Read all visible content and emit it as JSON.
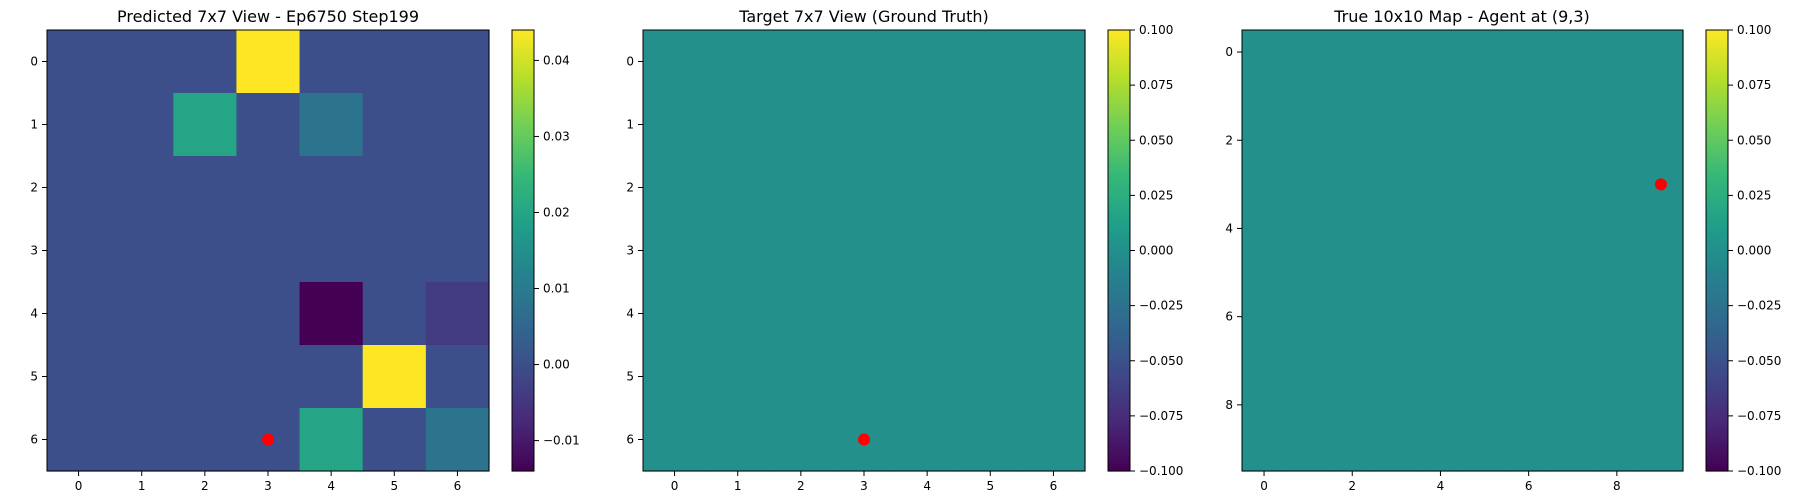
{
  "chart_data": [
    {
      "type": "heatmap",
      "title": "Predicted 7x7 View - Ep6750 Step199",
      "rows": 7,
      "cols": 7,
      "x_ticks": [
        "0",
        "1",
        "2",
        "3",
        "4",
        "5",
        "6"
      ],
      "y_ticks": [
        "0",
        "1",
        "2",
        "3",
        "4",
        "5",
        "6"
      ],
      "values": [
        [
          0.0,
          0.0,
          0.0,
          0.044,
          0.0,
          0.0,
          0.0
        ],
        [
          0.0,
          0.0,
          0.02,
          0.0,
          0.008,
          0.0,
          0.0
        ],
        [
          0.0,
          0.0,
          0.0,
          0.0,
          0.0,
          0.0,
          0.0
        ],
        [
          0.0,
          0.0,
          0.0,
          0.0,
          0.0,
          0.0,
          0.0
        ],
        [
          0.0,
          0.0,
          0.0,
          0.0,
          -0.014,
          0.0,
          -0.004
        ],
        [
          0.0,
          0.0,
          0.0,
          0.0,
          0.0,
          0.044,
          0.0
        ],
        [
          0.0,
          0.0,
          0.0,
          0.0,
          0.02,
          0.0,
          0.008
        ]
      ],
      "vmin": -0.014,
      "vmax": 0.044,
      "colorbar_ticks": [
        "−0.01",
        "0.00",
        "0.01",
        "0.02",
        "0.03",
        "0.04"
      ],
      "colorbar_tick_values": [
        -0.01,
        0.0,
        0.01,
        0.02,
        0.03,
        0.04
      ],
      "marker": {
        "x": 3,
        "y": 6,
        "color": "#ff0000"
      },
      "colormap": "viridis"
    },
    {
      "type": "heatmap",
      "title": "Target 7x7 View (Ground Truth)",
      "rows": 7,
      "cols": 7,
      "x_ticks": [
        "0",
        "1",
        "2",
        "3",
        "4",
        "5",
        "6"
      ],
      "y_ticks": [
        "0",
        "1",
        "2",
        "3",
        "4",
        "5",
        "6"
      ],
      "uniform_value": 0.0,
      "vmin": -0.1,
      "vmax": 0.1,
      "colorbar_ticks": [
        "−0.100",
        "−0.075",
        "−0.050",
        "−0.025",
        "0.000",
        "0.025",
        "0.050",
        "0.075",
        "0.100"
      ],
      "colorbar_tick_values": [
        -0.1,
        -0.075,
        -0.05,
        -0.025,
        0.0,
        0.025,
        0.05,
        0.075,
        0.1
      ],
      "marker": {
        "x": 3,
        "y": 6,
        "color": "#ff0000"
      },
      "colormap": "viridis"
    },
    {
      "type": "heatmap",
      "title": "True 10x10 Map - Agent at (9,3)",
      "rows": 10,
      "cols": 10,
      "x_ticks": [
        "0",
        "2",
        "4",
        "6",
        "8"
      ],
      "x_tick_values": [
        0,
        2,
        4,
        6,
        8
      ],
      "y_ticks": [
        "0",
        "2",
        "4",
        "6",
        "8"
      ],
      "y_tick_values": [
        0,
        2,
        4,
        6,
        8
      ],
      "uniform_value": 0.0,
      "vmin": -0.1,
      "vmax": 0.1,
      "colorbar_ticks": [
        "−0.100",
        "−0.075",
        "−0.050",
        "−0.025",
        "0.000",
        "0.025",
        "0.050",
        "0.075",
        "0.100"
      ],
      "colorbar_tick_values": [
        -0.1,
        -0.075,
        -0.05,
        -0.025,
        0.0,
        0.025,
        0.05,
        0.075,
        0.1
      ],
      "marker": {
        "x": 9,
        "y": 3,
        "color": "#ff0000"
      },
      "colormap": "viridis"
    }
  ]
}
